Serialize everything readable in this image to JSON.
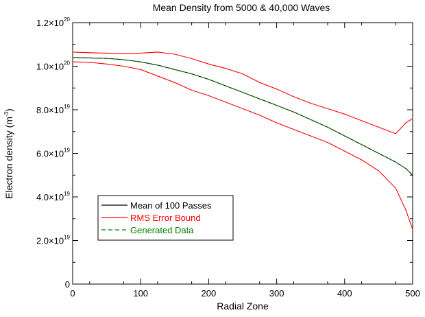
{
  "chart_data": {
    "type": "line",
    "title": "Mean Density from 5000 & 40,000 Waves",
    "xlabel": "Radial Zone",
    "ylabel": {
      "main": "Electron density (m",
      "sup": "-3",
      "close": ")"
    },
    "xlim": [
      0,
      500
    ],
    "ylim": [
      0,
      1.2e+20
    ],
    "grid": false,
    "legend_position": "lower-left",
    "x_tick_labels": [
      "0",
      "100",
      "200",
      "300",
      "400",
      "500"
    ],
    "x_ticks": [
      0,
      100,
      200,
      300,
      400,
      500
    ],
    "y_ticks": [
      0,
      2e+19,
      4e+19,
      6e+19,
      8e+19,
      1e+20,
      1.2e+20
    ],
    "y_tick_labels": [
      {
        "base": "0",
        "exp": ""
      },
      {
        "base": "2.0×10",
        "exp": "19"
      },
      {
        "base": "4.0×10",
        "exp": "19"
      },
      {
        "base": "6.0×10",
        "exp": "19"
      },
      {
        "base": "8.0×10",
        "exp": "19"
      },
      {
        "base": "1.0×10",
        "exp": "20"
      },
      {
        "base": "1.2×10",
        "exp": "20"
      }
    ],
    "x": [
      0,
      25,
      50,
      75,
      100,
      125,
      150,
      175,
      200,
      225,
      250,
      275,
      300,
      325,
      350,
      375,
      400,
      425,
      450,
      475,
      490,
      500
    ],
    "series": [
      {
        "name": "Mean of 100 Passes",
        "color": "#000000",
        "style": "solid",
        "values": [
          1.04e+20,
          1.038e+20,
          1.036e+20,
          1.03e+20,
          1.02e+20,
          1.005e+20,
          9.85e+19,
          9.65e+19,
          9.4e+19,
          9.1e+19,
          8.8e+19,
          8.5e+19,
          8.2e+19,
          7.9e+19,
          7.55e+19,
          7.2e+19,
          6.8e+19,
          6.4e+19,
          6e+19,
          5.6e+19,
          5.3e+19,
          5e+19
        ]
      },
      {
        "name": "RMS Error Bound",
        "color": "#ff0000",
        "style": "solid",
        "values": [
          1.065e+20,
          1.062e+20,
          1.06e+20,
          1.058e+20,
          1.06e+20,
          1.065e+20,
          1.055e+20,
          1.035e+20,
          1.01e+20,
          9.9e+19,
          9.65e+19,
          9.25e+19,
          8.95e+19,
          8.6e+19,
          8.3e+19,
          8.05e+19,
          7.8e+19,
          7.5e+19,
          7.2e+19,
          6.9e+19,
          7.4e+19,
          7.6e+19
        ]
      },
      {
        "name": "",
        "color": "#ff0000",
        "style": "solid",
        "values": [
          1.02e+20,
          1.018e+20,
          1.01e+20,
          1e+20,
          9.85e+19,
          9.55e+19,
          9.25e+19,
          8.9e+19,
          8.65e+19,
          8.35e+19,
          8.05e+19,
          7.75e+19,
          7.4e+19,
          7.1e+19,
          6.8e+19,
          6.5e+19,
          6.1e+19,
          5.7e+19,
          5.2e+19,
          4.4e+19,
          3.4e+19,
          2.5e+19
        ]
      },
      {
        "name": "Generated Data",
        "color": "#008000",
        "style": "dashed",
        "values": [
          1.04e+20,
          1.038e+20,
          1.036e+20,
          1.03e+20,
          1.02e+20,
          1.005e+20,
          9.85e+19,
          9.65e+19,
          9.4e+19,
          9.1e+19,
          8.8e+19,
          8.5e+19,
          8.2e+19,
          7.9e+19,
          7.55e+19,
          7.2e+19,
          6.8e+19,
          6.4e+19,
          6e+19,
          5.6e+19,
          5.3e+19,
          5e+19
        ]
      }
    ],
    "legend": [
      {
        "label": "Mean of 100 Passes",
        "color": "#000000",
        "text_color": "#000000",
        "style": "solid"
      },
      {
        "label": "RMS Error Bound",
        "color": "#ff0000",
        "text_color": "#ff0000",
        "style": "solid"
      },
      {
        "label": "Generated Data",
        "color": "#008000",
        "text_color": "#008000",
        "style": "dashed"
      }
    ]
  }
}
